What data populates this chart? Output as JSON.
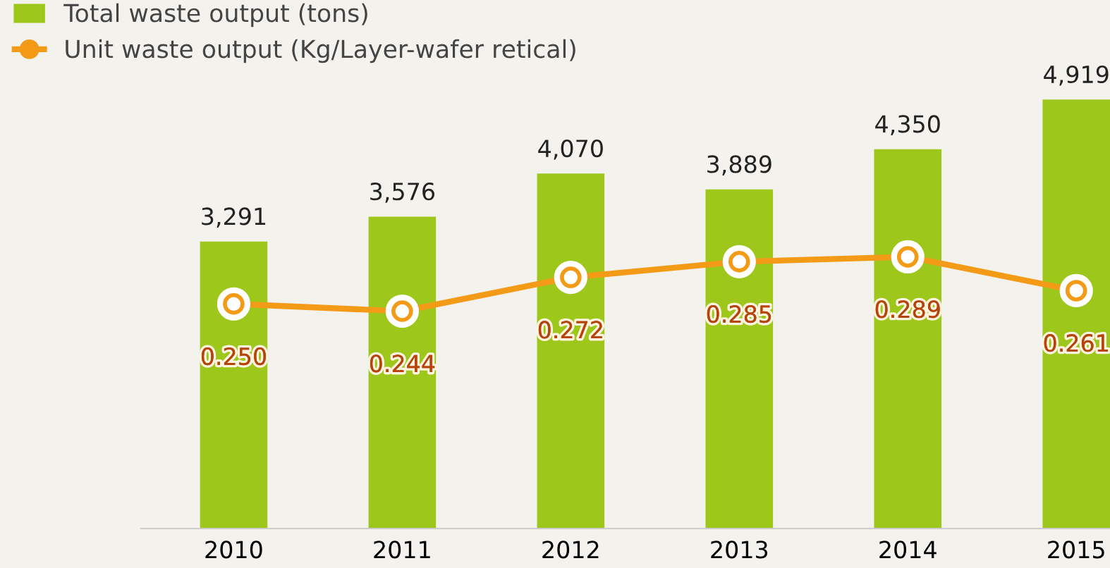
{
  "chart_data": {
    "type": "bar",
    "categories": [
      "2010",
      "2011",
      "2012",
      "2013",
      "2014",
      "2015"
    ],
    "series": [
      {
        "name": "Total waste output (tons)",
        "color": "#9dc71a",
        "values": [
          3291,
          3576,
          4070,
          3889,
          4350,
          4919
        ],
        "value_labels": [
          "3,291",
          "3,576",
          "4,070",
          "3,889",
          "4,350",
          "4,919"
        ]
      },
      {
        "name": "Unit waste output (Kg/Layer-wafer retical)",
        "type": "line",
        "axis": "y2",
        "color": "#f39a17",
        "marker": "circle",
        "values": [
          0.25,
          0.244,
          0.272,
          0.285,
          0.289,
          0.261
        ],
        "value_labels": [
          "0.250",
          "0.244",
          "0.272",
          "0.285",
          "0.289",
          "0.261"
        ]
      }
    ],
    "legend": "top left",
    "tick_labels": "x"
  }
}
